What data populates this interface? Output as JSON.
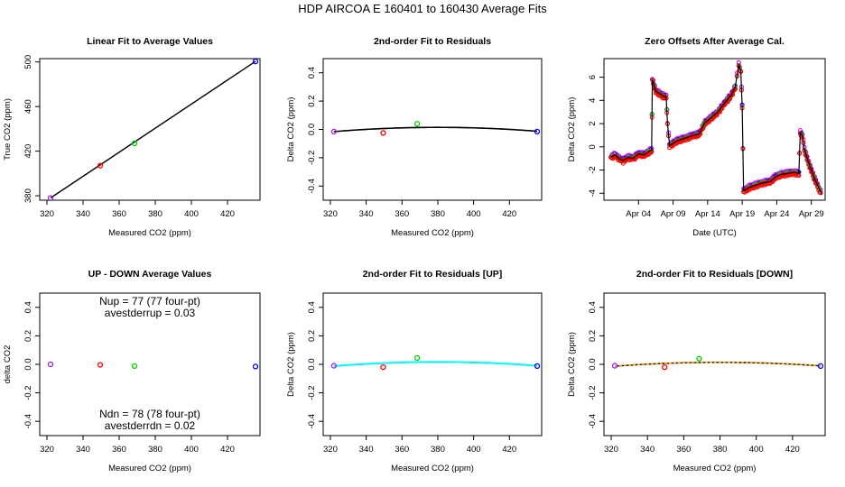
{
  "figure_title": "HDP   AIRCOA E   160401 to 160430   Average Fits",
  "colors": {
    "purple": "#a020f0",
    "red": "#ff0000",
    "green": "#00cd00",
    "blue": "#0000ff",
    "magenta": "#ff00ff",
    "cyan": "#00ffff",
    "orange": "#ffa500",
    "black": "#000000"
  },
  "chart_data": [
    {
      "type": "scatter",
      "title": "Linear Fit to Average Values",
      "xlabel": "Measured CO2 (ppm)",
      "ylabel": "True CO2 (ppm)",
      "xlim": [
        316,
        438
      ],
      "ylim": [
        376,
        503
      ],
      "xticks": [
        "320",
        "340",
        "360",
        "380",
        "400",
        "420"
      ],
      "yticks": [
        "380",
        "420",
        "460",
        "500"
      ],
      "points": [
        {
          "x": 322.0,
          "y": 378.0,
          "color": "purple"
        },
        {
          "x": 349.5,
          "y": 407.0,
          "color": "red"
        },
        {
          "x": 368.5,
          "y": 427.0,
          "color": "green"
        },
        {
          "x": 435.5,
          "y": 500.5,
          "color": "blue"
        }
      ],
      "fit": {
        "kind": "linear",
        "x": [
          322.0,
          435.5
        ],
        "y": [
          378.0,
          500.5
        ],
        "color": "black"
      }
    },
    {
      "type": "scatter",
      "title": "2nd-order Fit to Residuals",
      "xlabel": "Measured CO2 (ppm)",
      "ylabel": "Delta CO2 (ppm)",
      "xlim": [
        316,
        438
      ],
      "ylim": [
        -0.5,
        0.5
      ],
      "xticks": [
        "320",
        "340",
        "360",
        "380",
        "400",
        "420"
      ],
      "yticks": [
        "-0.4",
        "-0.2",
        "0.0",
        "0.2",
        "0.4"
      ],
      "points": [
        {
          "x": 322.0,
          "y": -0.015,
          "color": "purple"
        },
        {
          "x": 349.5,
          "y": -0.025,
          "color": "red"
        },
        {
          "x": 368.5,
          "y": 0.04,
          "color": "green"
        },
        {
          "x": 435.5,
          "y": -0.015,
          "color": "blue"
        }
      ],
      "fit": {
        "kind": "quadratic",
        "vertex_x": 380,
        "vertex_y": 0.015,
        "ends_y": -0.015,
        "x_range": [
          322,
          435.5
        ],
        "color": "black"
      }
    },
    {
      "type": "line",
      "title": "Zero Offsets After Average Cal.",
      "xlabel": "Date (UTC)",
      "ylabel": "Delta CO2 (ppm)",
      "xlim": [
        -1,
        31
      ],
      "ylim": [
        -4.6,
        7.6
      ],
      "xtick_values": [
        4,
        9,
        14,
        19,
        24,
        29
      ],
      "xticks": [
        "Apr 04",
        "Apr 09",
        "Apr 14",
        "Apr 19",
        "Apr 24",
        "Apr 29"
      ],
      "ytick_values": [
        -4,
        -2,
        0,
        2,
        4,
        6
      ],
      "yticks": [
        "-4",
        "-2",
        "0",
        "2",
        "4",
        "6"
      ],
      "series_colors": [
        "magenta",
        "purple",
        "blue",
        "green",
        "red"
      ],
      "baseline": [
        [
          0.0,
          -0.9
        ],
        [
          0.6,
          -0.7
        ],
        [
          1.2,
          -1.0
        ],
        [
          1.8,
          -1.2
        ],
        [
          2.5,
          -0.9
        ],
        [
          3.2,
          -1.0
        ],
        [
          4.0,
          -0.6
        ],
        [
          4.8,
          -0.7
        ],
        [
          5.5,
          -0.4
        ],
        [
          5.9,
          -0.3
        ],
        [
          6.0,
          5.8
        ],
        [
          6.5,
          4.8
        ],
        [
          7.0,
          4.6
        ],
        [
          7.5,
          4.4
        ],
        [
          8.0,
          4.3
        ],
        [
          8.2,
          2.0
        ],
        [
          8.5,
          0.1
        ],
        [
          9.0,
          0.3
        ],
        [
          9.5,
          0.5
        ],
        [
          10.0,
          0.6
        ],
        [
          11.0,
          0.8
        ],
        [
          12.0,
          1.0
        ],
        [
          12.8,
          1.1
        ],
        [
          13.5,
          2.0
        ],
        [
          14.5,
          2.5
        ],
        [
          15.5,
          3.0
        ],
        [
          16.5,
          3.8
        ],
        [
          17.5,
          4.5
        ],
        [
          18.0,
          5.2
        ],
        [
          18.5,
          7.1
        ],
        [
          18.8,
          6.5
        ],
        [
          19.0,
          3.5
        ],
        [
          19.2,
          -3.8
        ],
        [
          20.0,
          -3.5
        ],
        [
          21.0,
          -3.3
        ],
        [
          22.0,
          -3.1
        ],
        [
          23.0,
          -3.0
        ],
        [
          23.8,
          -2.6
        ],
        [
          24.5,
          -2.4
        ],
        [
          25.5,
          -2.3
        ],
        [
          26.5,
          -2.2
        ],
        [
          27.2,
          -2.3
        ],
        [
          27.4,
          1.2
        ],
        [
          27.7,
          1.0
        ],
        [
          28.0,
          -0.2
        ],
        [
          28.5,
          -1.2
        ],
        [
          29.0,
          -2.0
        ],
        [
          29.5,
          -2.8
        ],
        [
          30.2,
          -3.7
        ],
        [
          30.5,
          -4.1
        ]
      ]
    },
    {
      "type": "scatter",
      "title": "UP - DOWN Average Values",
      "xlabel": "Measured CO2 (ppm)",
      "ylabel": "delta CO2",
      "xlim": [
        316,
        438
      ],
      "ylim": [
        -0.5,
        0.5
      ],
      "xticks": [
        "320",
        "340",
        "360",
        "380",
        "400",
        "420"
      ],
      "yticks": [
        "-0.4",
        "-0.2",
        "0.0",
        "0.2",
        "0.4"
      ],
      "points": [
        {
          "x": 322.0,
          "y": 0.0,
          "color": "purple"
        },
        {
          "x": 349.5,
          "y": -0.003,
          "color": "red"
        },
        {
          "x": 368.5,
          "y": -0.012,
          "color": "green"
        },
        {
          "x": 435.5,
          "y": -0.015,
          "color": "blue"
        }
      ],
      "annotations": {
        "nup": "Nup = 77 (77 four-pt)",
        "avestderrup": "avestderrup =  0.03",
        "ndn": "Ndn = 78 (78 four-pt)",
        "avestderrdn": "avestderrdn =  0.02"
      }
    },
    {
      "type": "scatter",
      "title": "2nd-order Fit to Residuals [UP]",
      "xlabel": "Measured CO2 (ppm)",
      "ylabel": "Delta CO2 (ppm)",
      "xlim": [
        316,
        438
      ],
      "ylim": [
        -0.5,
        0.5
      ],
      "xticks": [
        "320",
        "340",
        "360",
        "380",
        "400",
        "420"
      ],
      "yticks": [
        "-0.4",
        "-0.2",
        "0.0",
        "0.2",
        "0.4"
      ],
      "points": [
        {
          "x": 322.0,
          "y": -0.01,
          "color": "purple"
        },
        {
          "x": 349.5,
          "y": -0.02,
          "color": "red"
        },
        {
          "x": 368.5,
          "y": 0.045,
          "color": "green"
        },
        {
          "x": 435.5,
          "y": -0.012,
          "color": "blue"
        }
      ],
      "fit": {
        "kind": "quadratic",
        "vertex_x": 380,
        "vertex_y": 0.017,
        "ends_y": -0.012,
        "x_range": [
          322,
          435.5
        ],
        "color": "cyan"
      }
    },
    {
      "type": "scatter",
      "title": "2nd-order Fit to Residuals [DOWN]",
      "xlabel": "Measured CO2 (ppm)",
      "ylabel": "Delta CO2 (ppm)",
      "xlim": [
        316,
        438
      ],
      "ylim": [
        -0.5,
        0.5
      ],
      "xticks": [
        "320",
        "340",
        "360",
        "380",
        "400",
        "420"
      ],
      "yticks": [
        "-0.4",
        "-0.2",
        "0.0",
        "0.2",
        "0.4"
      ],
      "points": [
        {
          "x": 322.0,
          "y": -0.01,
          "color": "purple"
        },
        {
          "x": 349.5,
          "y": -0.02,
          "color": "red"
        },
        {
          "x": 368.5,
          "y": 0.04,
          "color": "green"
        },
        {
          "x": 435.5,
          "y": -0.012,
          "color": "blue"
        }
      ],
      "fit": {
        "kind": "quadratic",
        "vertex_x": 380,
        "vertex_y": 0.015,
        "ends_y": -0.012,
        "x_range": [
          322,
          435.5
        ],
        "color": "orange"
      }
    }
  ]
}
